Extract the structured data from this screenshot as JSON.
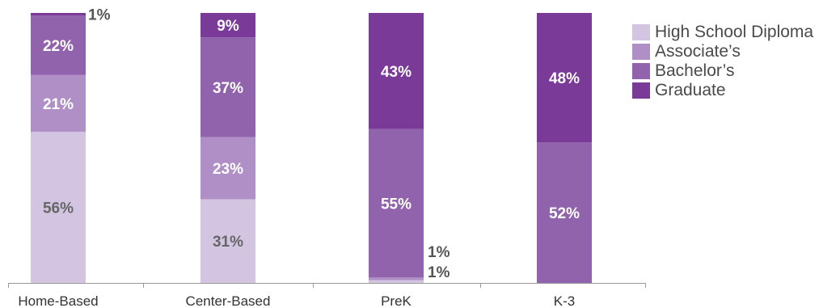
{
  "chart_data": {
    "type": "bar",
    "stacked": true,
    "categories": [
      "Home-Based",
      "Center-Based",
      "PreK",
      "K-3"
    ],
    "series": [
      {
        "name": "High School Diploma",
        "color": "#d3c4e1",
        "values": [
          56,
          31,
          1,
          0
        ],
        "labels": [
          "56%",
          "31%",
          "1%",
          ""
        ]
      },
      {
        "name": "Associate's",
        "color": "#b08fc6",
        "values": [
          21,
          23,
          1,
          0
        ],
        "labels": [
          "21%",
          "23%",
          "1%",
          ""
        ]
      },
      {
        "name": "Bachelor's",
        "color": "#9163ac",
        "values": [
          22,
          37,
          55,
          52
        ],
        "labels": [
          "22%",
          "37%",
          "55%",
          "52%"
        ]
      },
      {
        "name": "Graduate",
        "color": "#7a3a98",
        "values": [
          1,
          9,
          43,
          48
        ],
        "labels": [
          "1%",
          "9%",
          "43%",
          "48%"
        ]
      }
    ],
    "ylim": [
      0,
      100
    ],
    "legend": "right"
  },
  "legend_items": [
    {
      "label": "High School Diploma",
      "color": "#d3c4e1"
    },
    {
      "label": "Associate’s",
      "color": "#b08fc6"
    },
    {
      "label": "Bachelor’s",
      "color": "#9163ac"
    },
    {
      "label": "Graduate",
      "color": "#7a3a98"
    }
  ]
}
